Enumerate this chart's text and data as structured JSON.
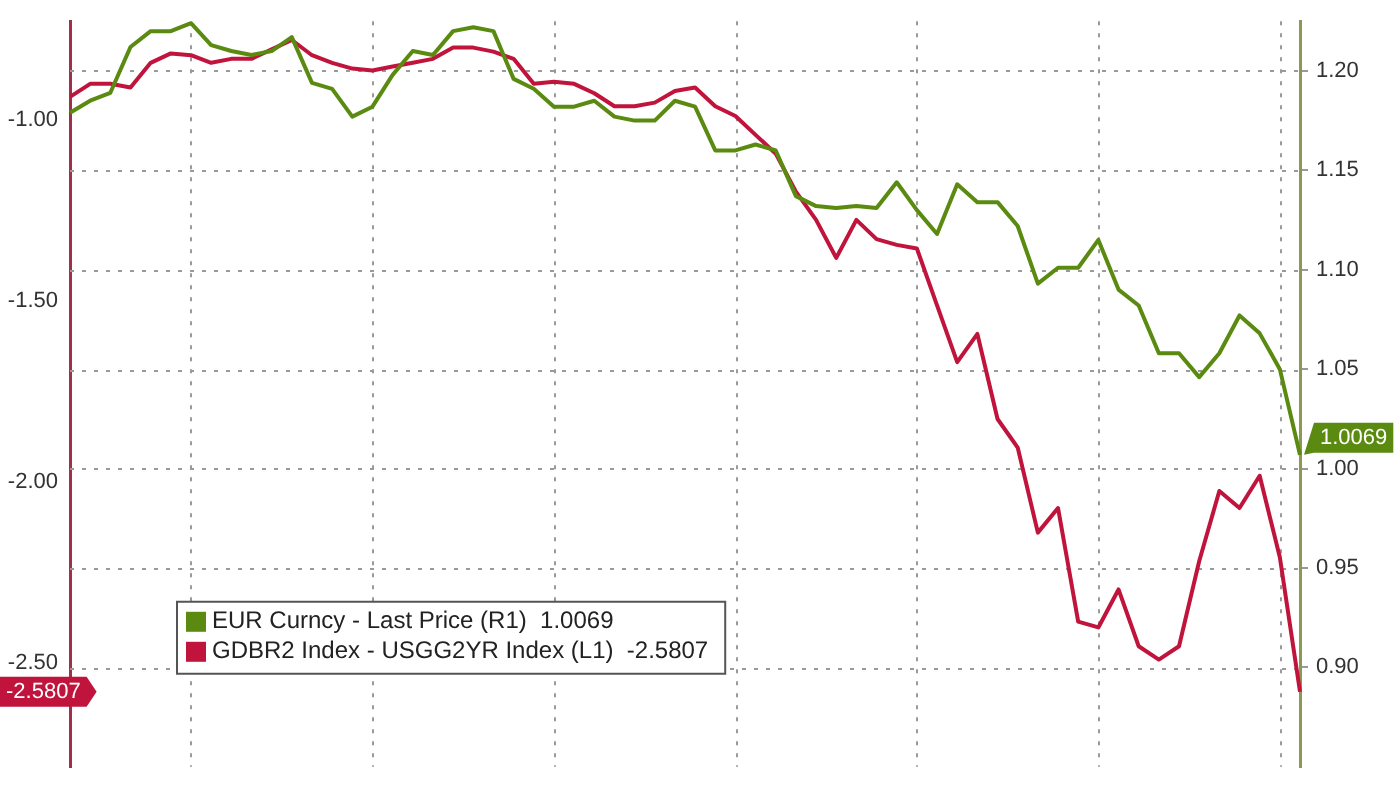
{
  "chart_data": {
    "type": "line",
    "categories": [
      null,
      null,
      null,
      null,
      null,
      null,
      null,
      null,
      null,
      null,
      null,
      null,
      null,
      null,
      null,
      null,
      null,
      null,
      null,
      null,
      null,
      null,
      null,
      null,
      null,
      null,
      null,
      null,
      null,
      null,
      null,
      null,
      null,
      null,
      null,
      null,
      null,
      null,
      null,
      null,
      null,
      null,
      null,
      null,
      null,
      null,
      null,
      null,
      null,
      null,
      null,
      null,
      null,
      null,
      null,
      null,
      null,
      null,
      null,
      null,
      null,
      null
    ],
    "series": [
      {
        "name": "EUR Curncy - Last Price (R1)  1.0069",
        "color": "#5a8a10",
        "axis": "y2",
        "values": [
          1.179,
          1.185,
          1.189,
          1.212,
          1.22,
          1.22,
          1.224,
          1.213,
          1.21,
          1.208,
          1.21,
          1.217,
          1.194,
          1.191,
          1.177,
          1.182,
          1.198,
          1.21,
          1.208,
          1.22,
          1.222,
          1.22,
          1.196,
          1.191,
          1.182,
          1.182,
          1.185,
          1.177,
          1.175,
          1.175,
          1.185,
          1.182,
          1.16,
          1.16,
          1.163,
          1.16,
          1.137,
          1.132,
          1.131,
          1.132,
          1.131,
          1.144,
          1.13,
          1.118,
          1.143,
          1.134,
          1.134,
          1.122,
          1.093,
          1.101,
          1.101,
          1.115,
          1.09,
          1.082,
          1.058,
          1.058,
          1.046,
          1.058,
          1.077,
          1.068,
          1.05,
          1.0069
        ]
      },
      {
        "name": "GDBR2 Index - USGG2YR Index (L1)  -2.5807",
        "color": "#c0143c",
        "axis": "y",
        "values": [
          -0.937,
          -0.901,
          -0.901,
          -0.911,
          -0.843,
          -0.817,
          -0.822,
          -0.843,
          -0.832,
          -0.832,
          -0.806,
          -0.78,
          -0.822,
          -0.843,
          -0.859,
          -0.864,
          -0.853,
          -0.843,
          -0.832,
          -0.801,
          -0.801,
          -0.812,
          -0.832,
          -0.901,
          -0.895,
          -0.901,
          -0.927,
          -0.963,
          -0.963,
          -0.953,
          -0.921,
          -0.911,
          -0.963,
          -0.99,
          -1.042,
          -1.094,
          -1.199,
          -1.277,
          -1.382,
          -1.277,
          -1.33,
          -1.346,
          -1.356,
          -1.513,
          -1.67,
          -1.592,
          -1.827,
          -1.906,
          -2.141,
          -2.073,
          -2.387,
          -2.403,
          -2.298,
          -2.455,
          -2.492,
          -2.455,
          -2.22,
          -2.026,
          -2.073,
          -1.984,
          -2.209,
          -2.5807
        ]
      }
    ],
    "ylim": [
      -2.788,
      -0.728
    ],
    "yticks": [
      {
        "value": -1,
        "label": "-1.00"
      },
      {
        "value": -1.5,
        "label": "-1.50"
      },
      {
        "value": -2,
        "label": "-2.00"
      },
      {
        "value": -2.5,
        "label": "-2.50"
      }
    ],
    "y2lim": [
      0.85,
      1.225
    ],
    "y2ticks": [
      {
        "value": 0.9,
        "label": "0.90"
      },
      {
        "value": 0.95,
        "label": "0.95"
      },
      {
        "value": 1,
        "label": "1.00"
      },
      {
        "value": 1.05,
        "label": "1.05"
      },
      {
        "value": 1.1,
        "label": "1.10"
      },
      {
        "value": 1.15,
        "label": "1.15"
      },
      {
        "value": 1.2,
        "label": "1.20"
      }
    ],
    "annotations": [
      "1.0069",
      "-2.5807"
    ],
    "tick_labels": "y",
    "grid": true,
    "legend": "bottom left",
    "marker": "none",
    "line_style": "solid"
  }
}
